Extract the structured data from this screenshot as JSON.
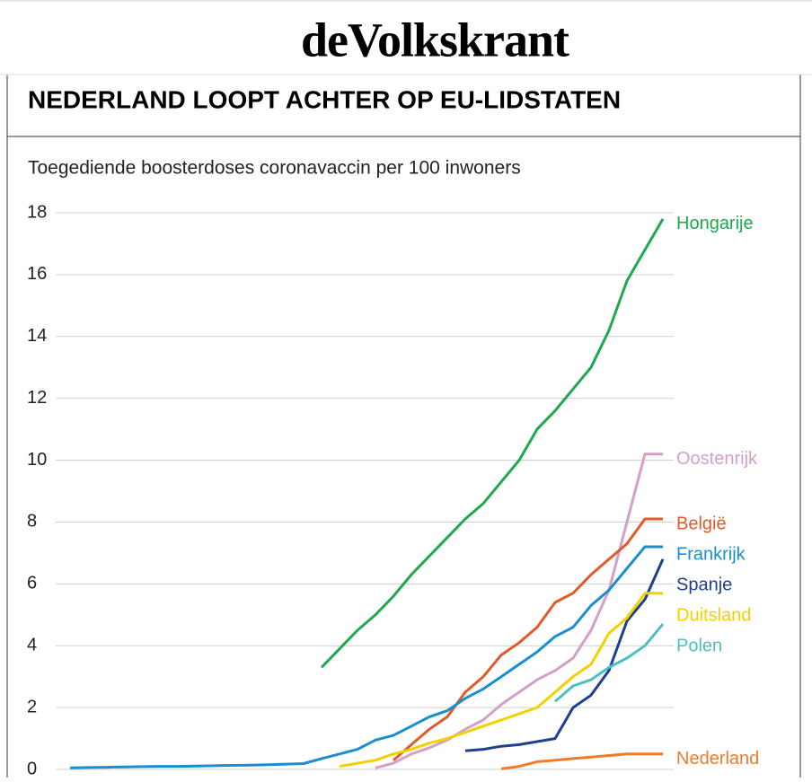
{
  "masthead": "deVolkskrant",
  "chart_data": {
    "type": "line",
    "title": "NEDERLAND LOOPT ACHTER OP EU-LIDSTATEN",
    "subtitle": "Toegediende boosterdoses coronavaccin per 100 inwoners",
    "categories": [
      null,
      null,
      null,
      null,
      null,
      null,
      null,
      null,
      null,
      null,
      null,
      null,
      null,
      null,
      null,
      null,
      null,
      null,
      null,
      null,
      null,
      null,
      null,
      null,
      null,
      null,
      null,
      null,
      null,
      null,
      null,
      null,
      null,
      null
    ],
    "ylim": [
      0,
      18
    ],
    "yticks": [
      0,
      2,
      4,
      6,
      8,
      10,
      12,
      14,
      16,
      18
    ],
    "grid": true,
    "series": [
      {
        "name": "Hongarije",
        "color": "#1fa84f",
        "values": [
          null,
          null,
          null,
          null,
          null,
          null,
          null,
          null,
          null,
          null,
          null,
          null,
          null,
          null,
          3.3,
          3.9,
          4.5,
          5.0,
          5.6,
          6.3,
          6.9,
          7.5,
          8.1,
          8.6,
          9.3,
          10.0,
          11.0,
          11.6,
          12.3,
          13.0,
          14.2,
          15.8,
          16.8,
          17.8
        ]
      },
      {
        "name": "Oostenrijk",
        "color": "#d4a0c8",
        "values": [
          null,
          null,
          null,
          null,
          null,
          null,
          null,
          null,
          null,
          null,
          null,
          null,
          null,
          null,
          null,
          null,
          null,
          0.05,
          0.2,
          0.5,
          0.7,
          0.95,
          1.3,
          1.6,
          2.1,
          2.5,
          2.9,
          3.2,
          3.6,
          4.5,
          5.8,
          8.0,
          10.2,
          10.2
        ]
      },
      {
        "name": "België",
        "color": "#e05a2b",
        "values": [
          null,
          null,
          null,
          null,
          null,
          null,
          null,
          null,
          null,
          null,
          null,
          null,
          null,
          null,
          null,
          null,
          null,
          null,
          0.3,
          0.8,
          1.3,
          1.7,
          2.5,
          3.0,
          3.7,
          4.1,
          4.6,
          5.4,
          5.7,
          6.3,
          6.8,
          7.3,
          8.1,
          8.1
        ]
      },
      {
        "name": "Frankrijk",
        "color": "#1a8fcf",
        "values": [
          0.05,
          0.06,
          0.07,
          0.08,
          0.09,
          0.1,
          0.1,
          0.11,
          0.12,
          0.13,
          0.14,
          0.15,
          0.17,
          0.19,
          0.35,
          0.5,
          0.65,
          0.95,
          1.1,
          1.4,
          1.7,
          1.9,
          2.3,
          2.6,
          3.0,
          3.4,
          3.8,
          4.3,
          4.6,
          5.3,
          5.8,
          6.5,
          7.2,
          7.2
        ]
      },
      {
        "name": "Spanje",
        "color": "#1e3f8f",
        "values": [
          null,
          null,
          null,
          null,
          null,
          null,
          null,
          null,
          null,
          null,
          null,
          null,
          null,
          null,
          null,
          null,
          null,
          null,
          null,
          null,
          null,
          null,
          0.6,
          0.65,
          0.75,
          0.8,
          0.9,
          1.0,
          2.0,
          2.4,
          3.2,
          4.8,
          5.5,
          6.8
        ]
      },
      {
        "name": "Duitsland",
        "color": "#f5d000",
        "values": [
          null,
          null,
          null,
          null,
          null,
          null,
          null,
          null,
          null,
          null,
          null,
          null,
          null,
          null,
          null,
          0.1,
          0.2,
          0.3,
          0.5,
          0.65,
          0.85,
          1.0,
          1.2,
          1.4,
          1.6,
          1.8,
          2.0,
          2.5,
          3.0,
          3.4,
          4.4,
          4.9,
          5.7,
          5.7
        ]
      },
      {
        "name": "Polen",
        "color": "#4cc0c0",
        "values": [
          null,
          null,
          null,
          null,
          null,
          null,
          null,
          null,
          null,
          null,
          null,
          null,
          null,
          null,
          null,
          null,
          null,
          null,
          null,
          null,
          null,
          null,
          null,
          null,
          null,
          null,
          null,
          2.2,
          2.7,
          2.9,
          3.3,
          3.6,
          4.0,
          4.7
        ]
      },
      {
        "name": "Nederland",
        "color": "#f07c28",
        "values": [
          null,
          null,
          null,
          null,
          null,
          null,
          null,
          null,
          null,
          null,
          null,
          null,
          null,
          null,
          null,
          null,
          null,
          null,
          null,
          null,
          null,
          null,
          null,
          null,
          0.02,
          0.1,
          0.25,
          0.3,
          0.35,
          0.4,
          0.45,
          0.5,
          0.5,
          0.5
        ]
      }
    ]
  }
}
